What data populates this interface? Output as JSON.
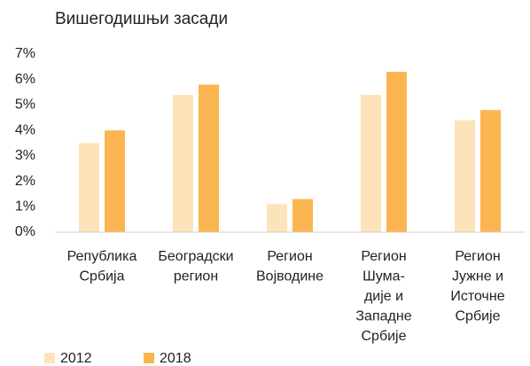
{
  "chart_data": {
    "type": "bar",
    "title": "Вишегодишњи засади",
    "categories": [
      [
        "Република",
        "Србија"
      ],
      [
        "Београдски",
        "регион"
      ],
      [
        "Регион",
        "Војводине"
      ],
      [
        "Регион",
        "Шума-",
        "дије и",
        "Западне",
        "Србије"
      ],
      [
        "Регион",
        "Јужне и",
        "Источне",
        "Србије"
      ]
    ],
    "series": [
      {
        "name": "2012",
        "color": "#fde3b9",
        "values": [
          3.5,
          5.4,
          1.1,
          5.4,
          4.4
        ]
      },
      {
        "name": "2018",
        "color": "#fbb550",
        "values": [
          4.0,
          5.8,
          1.3,
          6.3,
          4.8
        ]
      }
    ],
    "ylim": [
      0,
      7
    ],
    "yticks": [
      {
        "value": 0,
        "label": "0%"
      },
      {
        "value": 1,
        "label": "1%"
      },
      {
        "value": 2,
        "label": "2%"
      },
      {
        "value": 3,
        "label": "3%"
      },
      {
        "value": 4,
        "label": "4%"
      },
      {
        "value": 5,
        "label": "5%"
      },
      {
        "value": 6,
        "label": "6%"
      },
      {
        "value": 7,
        "label": "7%"
      }
    ],
    "grid": false,
    "legend": "bottom-left"
  }
}
